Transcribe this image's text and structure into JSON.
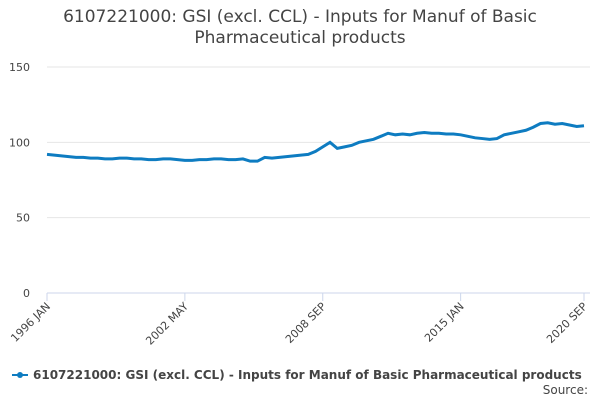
{
  "chart_data": {
    "type": "line",
    "title": "6107221000: GSI (excl. CCL) - Inputs for Manuf of Basic Pharmaceutical products",
    "categories": [
      "1996 JAN",
      null,
      null,
      null,
      null,
      null,
      null,
      null,
      null,
      null,
      null,
      null,
      null,
      null,
      null,
      null,
      null,
      null,
      null,
      "2002 MAY",
      null,
      null,
      null,
      null,
      null,
      null,
      null,
      null,
      null,
      null,
      null,
      null,
      null,
      null,
      null,
      null,
      null,
      null,
      "2008 SEP",
      null,
      null,
      null,
      null,
      null,
      null,
      null,
      null,
      null,
      null,
      null,
      null,
      null,
      null,
      null,
      null,
      null,
      null,
      "2015 JAN",
      null,
      null,
      null,
      null,
      null,
      null,
      null,
      null,
      null,
      null,
      null,
      null,
      null,
      null,
      null,
      null,
      "2020 SEP"
    ],
    "series": [
      {
        "name": "6107221000: GSI (excl. CCL) - Inputs for Manuf of Basic Pharmaceutical products",
        "color": "#0e7cc1",
        "values": [
          92,
          91.5,
          91,
          90.5,
          90,
          90,
          89.5,
          89.5,
          89,
          89,
          89.5,
          89.5,
          89,
          89,
          88.5,
          88.5,
          89,
          89,
          88.5,
          88,
          88,
          88.5,
          88.5,
          89,
          89,
          88.5,
          88.5,
          89,
          87.5,
          87.5,
          90,
          89.5,
          90,
          90.5,
          91,
          91.5,
          92,
          94,
          97,
          100,
          96,
          97,
          98,
          100,
          101,
          102,
          104,
          106,
          105,
          105.5,
          105,
          106,
          106.5,
          106,
          106,
          105.5,
          105.5,
          105,
          104,
          103,
          102.5,
          102,
          102.5,
          105,
          106,
          107,
          108,
          110,
          112.5,
          113,
          112,
          112.5,
          111.5,
          110.5,
          111
        ]
      }
    ],
    "ylim": [
      0,
      150
    ],
    "yticks": [
      0,
      50,
      100,
      150
    ],
    "grid": true,
    "source": "Source:"
  }
}
